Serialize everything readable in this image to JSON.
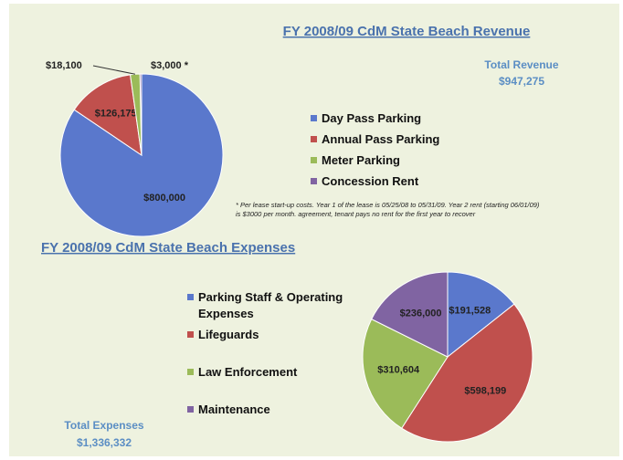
{
  "chart_data": [
    {
      "type": "pie",
      "title": "FY 2008/09 CdM State Beach Revenue",
      "categories": [
        "Day Pass Parking",
        "Annual Pass Parking",
        "Meter Parking",
        "Concession Rent"
      ],
      "values": [
        800000,
        126175,
        18100,
        3000
      ],
      "value_labels": [
        "$800,000",
        "$126,175",
        "$18,100",
        "$3,000 *"
      ],
      "colors": [
        "#5a78cc",
        "#c0504d",
        "#9bbb59",
        "#8064a2"
      ],
      "annotations": [
        "Total Revenue",
        "$947,275",
        "* Per lease start-up costs.  Year 1 of the lease is 05/25/08 to 05/31/09. Year 2 rent (starting 06/01/09) is $3000 per month. agreement, tenant pays no rent for the first year to recover"
      ]
    },
    {
      "type": "pie",
      "title": "FY 2008/09 CdM State Beach Expenses",
      "categories": [
        "Parking Staff & Operating Expenses",
        "Lifeguards",
        "Law Enforcement",
        "Maintenance"
      ],
      "values": [
        191528,
        598199,
        310604,
        236000
      ],
      "value_labels": [
        "$191,528",
        "$598,199",
        "$310,604",
        "$236,000"
      ],
      "colors": [
        "#5a78cc",
        "#c0504d",
        "#9bbb59",
        "#8064a2"
      ],
      "annotations": [
        "Total Expenses",
        "$1,336,332"
      ]
    }
  ]
}
